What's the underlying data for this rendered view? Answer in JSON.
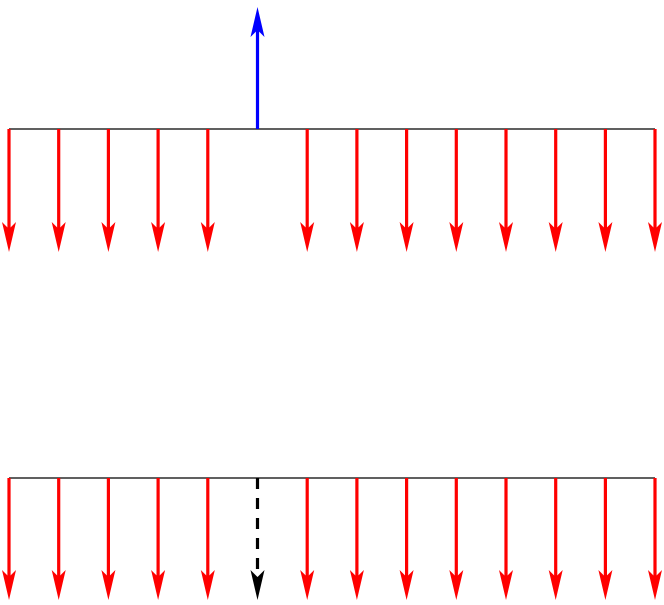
{
  "colors": {
    "background": "#ffffff",
    "beam": "#000000",
    "red_arrow": "#ff0000",
    "blue_arrow": "#0000ff",
    "dashed_arrow": "#000000"
  },
  "top_panel": {
    "beam": {
      "style": "solid"
    },
    "down_arrows_count": 13,
    "gap_at_index": 5,
    "up_arrow_at_index": 5,
    "up_arrow_color": "blue"
  },
  "bottom_panel": {
    "beam": {
      "style": "solid"
    },
    "down_arrows_count": 14,
    "dashed_arrow_at_index": 5,
    "dashed_arrow_color": "black"
  }
}
